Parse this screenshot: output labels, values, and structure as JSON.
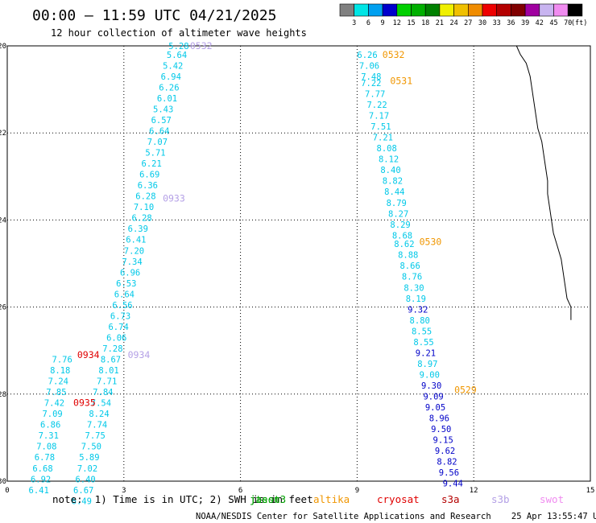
{
  "chart_data": {
    "type": "scatter",
    "title": "00:00 – 11:59 UTC 04/21/2025",
    "subtitle": "12 hour collection of altimeter wave heights",
    "xlim": [
      0,
      15
    ],
    "ylim": [
      -30,
      -20
    ],
    "x_ticks": [
      "0",
      "3",
      "6",
      "9",
      "12",
      "15"
    ],
    "y_ticks": [
      "-20",
      "-22",
      "-24",
      "-26",
      "-28",
      "-30"
    ],
    "grid": true,
    "legend": {
      "unit": "(ft)",
      "bins": [
        {
          "label": "3",
          "color": "#808080"
        },
        {
          "label": "6",
          "color": "#00e5e5"
        },
        {
          "label": "9",
          "color": "#00a0f0"
        },
        {
          "label": "12",
          "color": "#0000cc"
        },
        {
          "label": "15",
          "color": "#00d000"
        },
        {
          "label": "18",
          "color": "#00b000"
        },
        {
          "label": "21",
          "color": "#008000"
        },
        {
          "label": "24",
          "color": "#f0f000"
        },
        {
          "label": "27",
          "color": "#f0c000"
        },
        {
          "label": "30",
          "color": "#f08c00"
        },
        {
          "label": "33",
          "color": "#ee0000"
        },
        {
          "label": "36",
          "color": "#b40000"
        },
        {
          "label": "39",
          "color": "#800000"
        },
        {
          "label": "42",
          "color": "#a000a0"
        },
        {
          "label": "45",
          "color": "#c8b4f0"
        },
        {
          "label": "70",
          "color": "#f08cf0"
        },
        {
          "label": "",
          "color": "#000000"
        }
      ]
    },
    "colors": {
      "cyan": "#00c8e8",
      "blue": "#0000c8",
      "lavender": "#b4a0e6",
      "orange": "#f09600",
      "red": "#e00000"
    },
    "passes": [
      {
        "label": "0532",
        "x": 4.7,
        "y": -20.0,
        "color": "lavender"
      },
      {
        "label": "0933",
        "x": 4.0,
        "y": -23.5,
        "color": "lavender"
      },
      {
        "label": "0934",
        "x": 3.1,
        "y": -27.1,
        "color": "lavender"
      },
      {
        "label": "0934",
        "x": 1.8,
        "y": -27.1,
        "color": "red"
      },
      {
        "label": "0935",
        "x": 1.7,
        "y": -28.2,
        "color": "red"
      },
      {
        "label": "0532",
        "x": 9.65,
        "y": -20.2,
        "color": "orange"
      },
      {
        "label": "0531",
        "x": 9.85,
        "y": -20.8,
        "color": "orange"
      },
      {
        "label": "0530",
        "x": 10.6,
        "y": -24.5,
        "color": "orange"
      },
      {
        "label": "0529",
        "x": 11.5,
        "y": -27.9,
        "color": "orange"
      }
    ],
    "series": [
      {
        "color": "cyan",
        "points": [
          {
            "x": 4.15,
            "y": -20.0,
            "v": "5.28"
          },
          {
            "x": 4.1,
            "y": -20.2,
            "v": "5.64"
          },
          {
            "x": 4.0,
            "y": -20.45,
            "v": "5.42"
          },
          {
            "x": 3.95,
            "y": -20.7,
            "v": "6.94"
          },
          {
            "x": 3.9,
            "y": -20.95,
            "v": "6.26"
          },
          {
            "x": 3.85,
            "y": -21.2,
            "v": "6.01"
          },
          {
            "x": 3.75,
            "y": -21.45,
            "v": "5.43"
          },
          {
            "x": 3.7,
            "y": -21.7,
            "v": "6.57"
          },
          {
            "x": 3.65,
            "y": -21.95,
            "v": "6.64"
          },
          {
            "x": 3.6,
            "y": -22.2,
            "v": "7.07"
          },
          {
            "x": 3.55,
            "y": -22.45,
            "v": "5.71"
          },
          {
            "x": 3.45,
            "y": -22.7,
            "v": "6.21"
          },
          {
            "x": 3.4,
            "y": -22.95,
            "v": "6.69"
          },
          {
            "x": 3.35,
            "y": -23.2,
            "v": "6.36"
          },
          {
            "x": 3.3,
            "y": -23.45,
            "v": "6.28"
          },
          {
            "x": 3.25,
            "y": -23.7,
            "v": "7.10"
          },
          {
            "x": 3.2,
            "y": -23.95,
            "v": "6.28"
          },
          {
            "x": 3.1,
            "y": -24.2,
            "v": "6.39"
          },
          {
            "x": 3.05,
            "y": -24.45,
            "v": "6.41"
          },
          {
            "x": 3.0,
            "y": -24.7,
            "v": "7.20"
          },
          {
            "x": 2.95,
            "y": -24.95,
            "v": "7.34"
          },
          {
            "x": 2.9,
            "y": -25.2,
            "v": "6.96"
          },
          {
            "x": 2.8,
            "y": -25.45,
            "v": "6.53"
          },
          {
            "x": 2.75,
            "y": -25.7,
            "v": "6.64"
          },
          {
            "x": 2.7,
            "y": -25.95,
            "v": "6.56"
          },
          {
            "x": 2.65,
            "y": -26.2,
            "v": "6.73"
          },
          {
            "x": 2.6,
            "y": -26.45,
            "v": "6.74"
          },
          {
            "x": 2.55,
            "y": -26.7,
            "v": "6.06"
          },
          {
            "x": 2.45,
            "y": -26.95,
            "v": "7.28"
          },
          {
            "x": 2.4,
            "y": -27.2,
            "v": "8.67"
          },
          {
            "x": 2.35,
            "y": -27.45,
            "v": "8.01"
          },
          {
            "x": 2.3,
            "y": -27.7,
            "v": "7.71"
          },
          {
            "x": 2.2,
            "y": -27.95,
            "v": "7.84"
          },
          {
            "x": 2.15,
            "y": -28.2,
            "v": "7.54"
          },
          {
            "x": 2.1,
            "y": -28.45,
            "v": "8.24"
          },
          {
            "x": 2.05,
            "y": -28.7,
            "v": "7.74"
          },
          {
            "x": 2.0,
            "y": -28.95,
            "v": "7.75"
          },
          {
            "x": 1.9,
            "y": -29.2,
            "v": "7.50"
          },
          {
            "x": 1.85,
            "y": -29.45,
            "v": "5.89"
          },
          {
            "x": 1.8,
            "y": -29.7,
            "v": "7.02"
          },
          {
            "x": 1.75,
            "y": -29.95,
            "v": "6.40"
          },
          {
            "x": 1.7,
            "y": -30.2,
            "v": "6.67"
          },
          {
            "x": 1.65,
            "y": -30.45,
            "v": "6.49"
          },
          {
            "x": 1.15,
            "y": -27.2,
            "v": "7.76"
          },
          {
            "x": 1.1,
            "y": -27.45,
            "v": "8.18"
          },
          {
            "x": 1.05,
            "y": -27.7,
            "v": "7.24"
          },
          {
            "x": 1.0,
            "y": -27.95,
            "v": "7.85"
          },
          {
            "x": 0.95,
            "y": -28.2,
            "v": "7.42"
          },
          {
            "x": 0.9,
            "y": -28.45,
            "v": "7.09"
          },
          {
            "x": 0.85,
            "y": -28.7,
            "v": "6.86"
          },
          {
            "x": 0.8,
            "y": -28.95,
            "v": "7.31"
          },
          {
            "x": 0.75,
            "y": -29.2,
            "v": "7.08"
          },
          {
            "x": 0.7,
            "y": -29.45,
            "v": "6.78"
          },
          {
            "x": 0.65,
            "y": -29.7,
            "v": "6.68"
          },
          {
            "x": 0.6,
            "y": -29.95,
            "v": "6.92"
          },
          {
            "x": 0.55,
            "y": -30.2,
            "v": "6.41"
          },
          {
            "x": 9.0,
            "y": -20.2,
            "v": "6.26"
          },
          {
            "x": 9.05,
            "y": -20.45,
            "v": "7.06"
          },
          {
            "x": 9.1,
            "y": -20.7,
            "v": "7.48"
          },
          {
            "x": 9.1,
            "y": -20.85,
            "v": "7.22"
          },
          {
            "x": 9.2,
            "y": -21.1,
            "v": "7.77"
          },
          {
            "x": 9.25,
            "y": -21.35,
            "v": "7.22"
          },
          {
            "x": 9.3,
            "y": -21.6,
            "v": "7.17"
          },
          {
            "x": 9.35,
            "y": -21.85,
            "v": "7.51"
          },
          {
            "x": 9.4,
            "y": -22.1,
            "v": "7.21"
          },
          {
            "x": 9.5,
            "y": -22.35,
            "v": "8.08"
          },
          {
            "x": 9.55,
            "y": -22.6,
            "v": "8.12"
          },
          {
            "x": 9.6,
            "y": -22.85,
            "v": "8.40"
          },
          {
            "x": 9.65,
            "y": -23.1,
            "v": "8.82"
          },
          {
            "x": 9.7,
            "y": -23.35,
            "v": "8.44"
          },
          {
            "x": 9.75,
            "y": -23.6,
            "v": "8.79"
          },
          {
            "x": 9.8,
            "y": -23.85,
            "v": "8.27"
          },
          {
            "x": 9.85,
            "y": -24.1,
            "v": "8.29"
          },
          {
            "x": 9.9,
            "y": -24.35,
            "v": "8.68"
          },
          {
            "x": 9.95,
            "y": -24.55,
            "v": "8.62"
          },
          {
            "x": 10.05,
            "y": -24.8,
            "v": "8.88"
          },
          {
            "x": 10.1,
            "y": -25.05,
            "v": "8.66"
          },
          {
            "x": 10.15,
            "y": -25.3,
            "v": "8.76"
          },
          {
            "x": 10.2,
            "y": -25.55,
            "v": "8.30"
          },
          {
            "x": 10.25,
            "y": -25.8,
            "v": "8.19"
          },
          {
            "x": 10.35,
            "y": -26.3,
            "v": "8.80"
          },
          {
            "x": 10.4,
            "y": -26.55,
            "v": "8.55"
          },
          {
            "x": 10.45,
            "y": -26.8,
            "v": "8.55"
          },
          {
            "x": 10.55,
            "y": -27.3,
            "v": "8.97"
          },
          {
            "x": 10.6,
            "y": -27.55,
            "v": "9.00"
          }
        ]
      },
      {
        "color": "blue",
        "points": [
          {
            "x": 10.3,
            "y": -26.05,
            "v": "9.32"
          },
          {
            "x": 10.5,
            "y": -27.05,
            "v": "9.21"
          },
          {
            "x": 10.65,
            "y": -27.8,
            "v": "9.30"
          },
          {
            "x": 10.7,
            "y": -28.05,
            "v": "9.09"
          },
          {
            "x": 10.75,
            "y": -28.3,
            "v": "9.05"
          },
          {
            "x": 10.85,
            "y": -28.55,
            "v": "8.96"
          },
          {
            "x": 10.9,
            "y": -28.8,
            "v": "9.50"
          },
          {
            "x": 10.95,
            "y": -29.05,
            "v": "9.15"
          },
          {
            "x": 11.0,
            "y": -29.3,
            "v": "9.62"
          },
          {
            "x": 11.05,
            "y": -29.55,
            "v": "8.82"
          },
          {
            "x": 11.1,
            "y": -29.8,
            "v": "9.56"
          },
          {
            "x": 11.2,
            "y": -30.05,
            "v": "9.44"
          }
        ]
      }
    ],
    "coastline": [
      [
        13.1,
        -20.0
      ],
      [
        13.2,
        -20.2
      ],
      [
        13.35,
        -20.4
      ],
      [
        13.45,
        -20.7
      ],
      [
        13.5,
        -21.0
      ],
      [
        13.55,
        -21.3
      ],
      [
        13.6,
        -21.6
      ],
      [
        13.65,
        -21.9
      ],
      [
        13.75,
        -22.2
      ],
      [
        13.8,
        -22.5
      ],
      [
        13.85,
        -22.8
      ],
      [
        13.9,
        -23.1
      ],
      [
        13.9,
        -23.4
      ],
      [
        13.95,
        -23.7
      ],
      [
        14.0,
        -24.0
      ],
      [
        14.05,
        -24.3
      ],
      [
        14.15,
        -24.6
      ],
      [
        14.25,
        -24.9
      ],
      [
        14.3,
        -25.2
      ],
      [
        14.35,
        -25.5
      ],
      [
        14.4,
        -25.8
      ],
      [
        14.5,
        -26.0
      ],
      [
        14.5,
        -26.3
      ]
    ],
    "satellites": [
      {
        "name": "jason3",
        "color": "#00a000"
      },
      {
        "name": "jtest",
        "color": "#00a000"
      },
      {
        "name": "altika",
        "color": "#f09600"
      },
      {
        "name": "cryosat",
        "color": "#e00000"
      },
      {
        "name": "s3a",
        "color": "#b40000"
      },
      {
        "name": "s3b",
        "color": "#b4a0e6"
      },
      {
        "name": "swot",
        "color": "#f08cf0"
      }
    ],
    "note": "note:  1) Time is in UTC; 2) SWH is in feet",
    "footer": "NOAA/NESDIS Center for Satellite Applications and Research    25 Apr 13:55:47 UTC 2025"
  }
}
